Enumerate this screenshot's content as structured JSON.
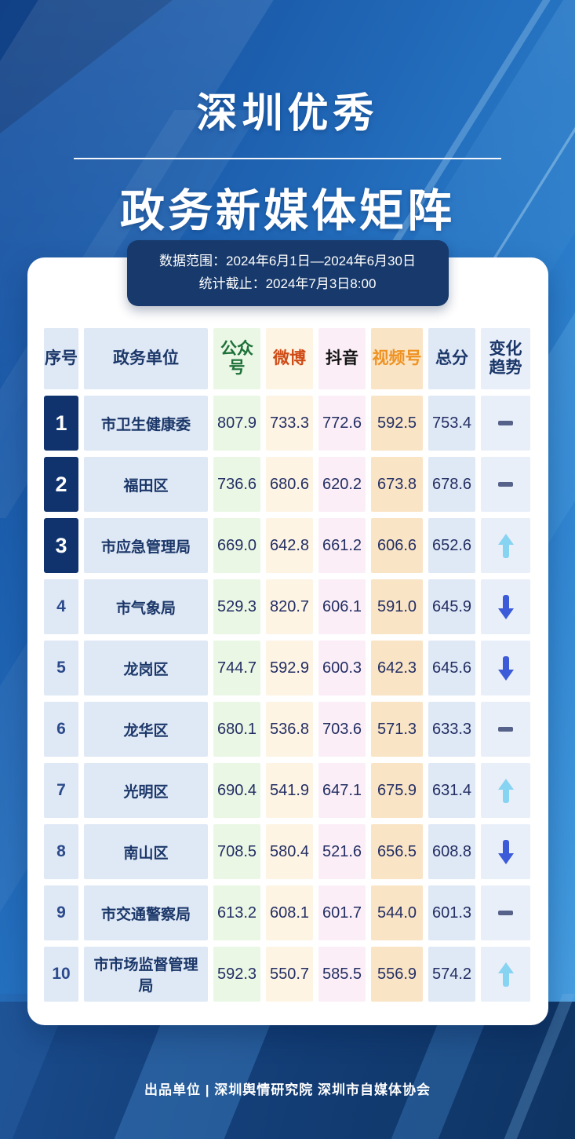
{
  "title": {
    "line1": "深圳优秀",
    "line2": "政务新媒体矩阵"
  },
  "badge": {
    "line1": "数据范围：2024年6月1日—2024年6月30日",
    "line2": "统计截止：2024年7月3日8:00"
  },
  "table": {
    "headers": [
      "序号",
      "政务单位",
      "公众号",
      "微博",
      "抖音",
      "视频号",
      "总分",
      "变化趋势"
    ],
    "rows": [
      {
        "rank": "1",
        "unit": "市卫生健康委",
        "values": [
          "807.9",
          "733.3",
          "772.6",
          "592.5",
          "753.4"
        ],
        "trend": "flat"
      },
      {
        "rank": "2",
        "unit": "福田区",
        "values": [
          "736.6",
          "680.6",
          "620.2",
          "673.8",
          "678.6"
        ],
        "trend": "flat"
      },
      {
        "rank": "3",
        "unit": "市应急管理局",
        "values": [
          "669.0",
          "642.8",
          "661.2",
          "606.6",
          "652.6"
        ],
        "trend": "up"
      },
      {
        "rank": "4",
        "unit": "市气象局",
        "values": [
          "529.3",
          "820.7",
          "606.1",
          "591.0",
          "645.9"
        ],
        "trend": "down"
      },
      {
        "rank": "5",
        "unit": "龙岗区",
        "values": [
          "744.7",
          "592.9",
          "600.3",
          "642.3",
          "645.6"
        ],
        "trend": "down"
      },
      {
        "rank": "6",
        "unit": "龙华区",
        "values": [
          "680.1",
          "536.8",
          "703.6",
          "571.3",
          "633.3"
        ],
        "trend": "flat"
      },
      {
        "rank": "7",
        "unit": "光明区",
        "values": [
          "690.4",
          "541.9",
          "647.1",
          "675.9",
          "631.4"
        ],
        "trend": "up"
      },
      {
        "rank": "8",
        "unit": "南山区",
        "values": [
          "708.5",
          "580.4",
          "521.6",
          "656.5",
          "608.8"
        ],
        "trend": "down"
      },
      {
        "rank": "9",
        "unit": "市交通警察局",
        "values": [
          "613.2",
          "608.1",
          "601.7",
          "544.0",
          "601.3"
        ],
        "trend": "flat"
      },
      {
        "rank": "10",
        "unit": "市市场监督管理局",
        "values": [
          "592.3",
          "550.7",
          "585.5",
          "556.9",
          "574.2"
        ],
        "trend": "up"
      }
    ]
  },
  "footer": {
    "text": "出品单位 | 深圳舆情研究院 深圳市自媒体协会"
  },
  "colors": {
    "background_blue": "#2470bf",
    "bottom_navy": "#123e77",
    "badge_navy": "#17396b",
    "rank_top_navy": "#10336e",
    "column_blue_tint": "#dfe8f5",
    "gongzhonghao_green": "#1d7038",
    "weibo_red": "#cf4b16",
    "douyin_black": "#141414",
    "shipinhao_orange": "#ef9222",
    "trend_up_cyan": "#87d3f2",
    "trend_down_blue": "#3b5bd9",
    "trend_flat_gray": "#56628a"
  },
  "chart_data": {
    "type": "table",
    "title": "深圳优秀政务新媒体矩阵",
    "subtitle_range": "数据范围：2024年6月1日—2024年6月30日",
    "subtitle_cutoff": "统计截止：2024年7月3日8:00",
    "columns": [
      "序号",
      "政务单位",
      "公众号",
      "微博",
      "抖音",
      "视频号",
      "总分",
      "变化趋势"
    ],
    "rows": [
      [
        1,
        "市卫生健康委",
        807.9,
        733.3,
        772.6,
        592.5,
        753.4,
        "flat"
      ],
      [
        2,
        "福田区",
        736.6,
        680.6,
        620.2,
        673.8,
        678.6,
        "flat"
      ],
      [
        3,
        "市应急管理局",
        669.0,
        642.8,
        661.2,
        606.6,
        652.6,
        "up"
      ],
      [
        4,
        "市气象局",
        529.3,
        820.7,
        606.1,
        591.0,
        645.9,
        "down"
      ],
      [
        5,
        "龙岗区",
        744.7,
        592.9,
        600.3,
        642.3,
        645.6,
        "down"
      ],
      [
        6,
        "龙华区",
        680.1,
        536.8,
        703.6,
        571.3,
        633.3,
        "flat"
      ],
      [
        7,
        "光明区",
        690.4,
        541.9,
        647.1,
        675.9,
        631.4,
        "up"
      ],
      [
        8,
        "南山区",
        708.5,
        580.4,
        521.6,
        656.5,
        608.8,
        "down"
      ],
      [
        9,
        "市交通警察局",
        613.2,
        608.1,
        601.7,
        544.0,
        601.3,
        "flat"
      ],
      [
        10,
        "市市场监督管理局",
        592.3,
        550.7,
        585.5,
        556.9,
        574.2,
        "up"
      ]
    ]
  }
}
